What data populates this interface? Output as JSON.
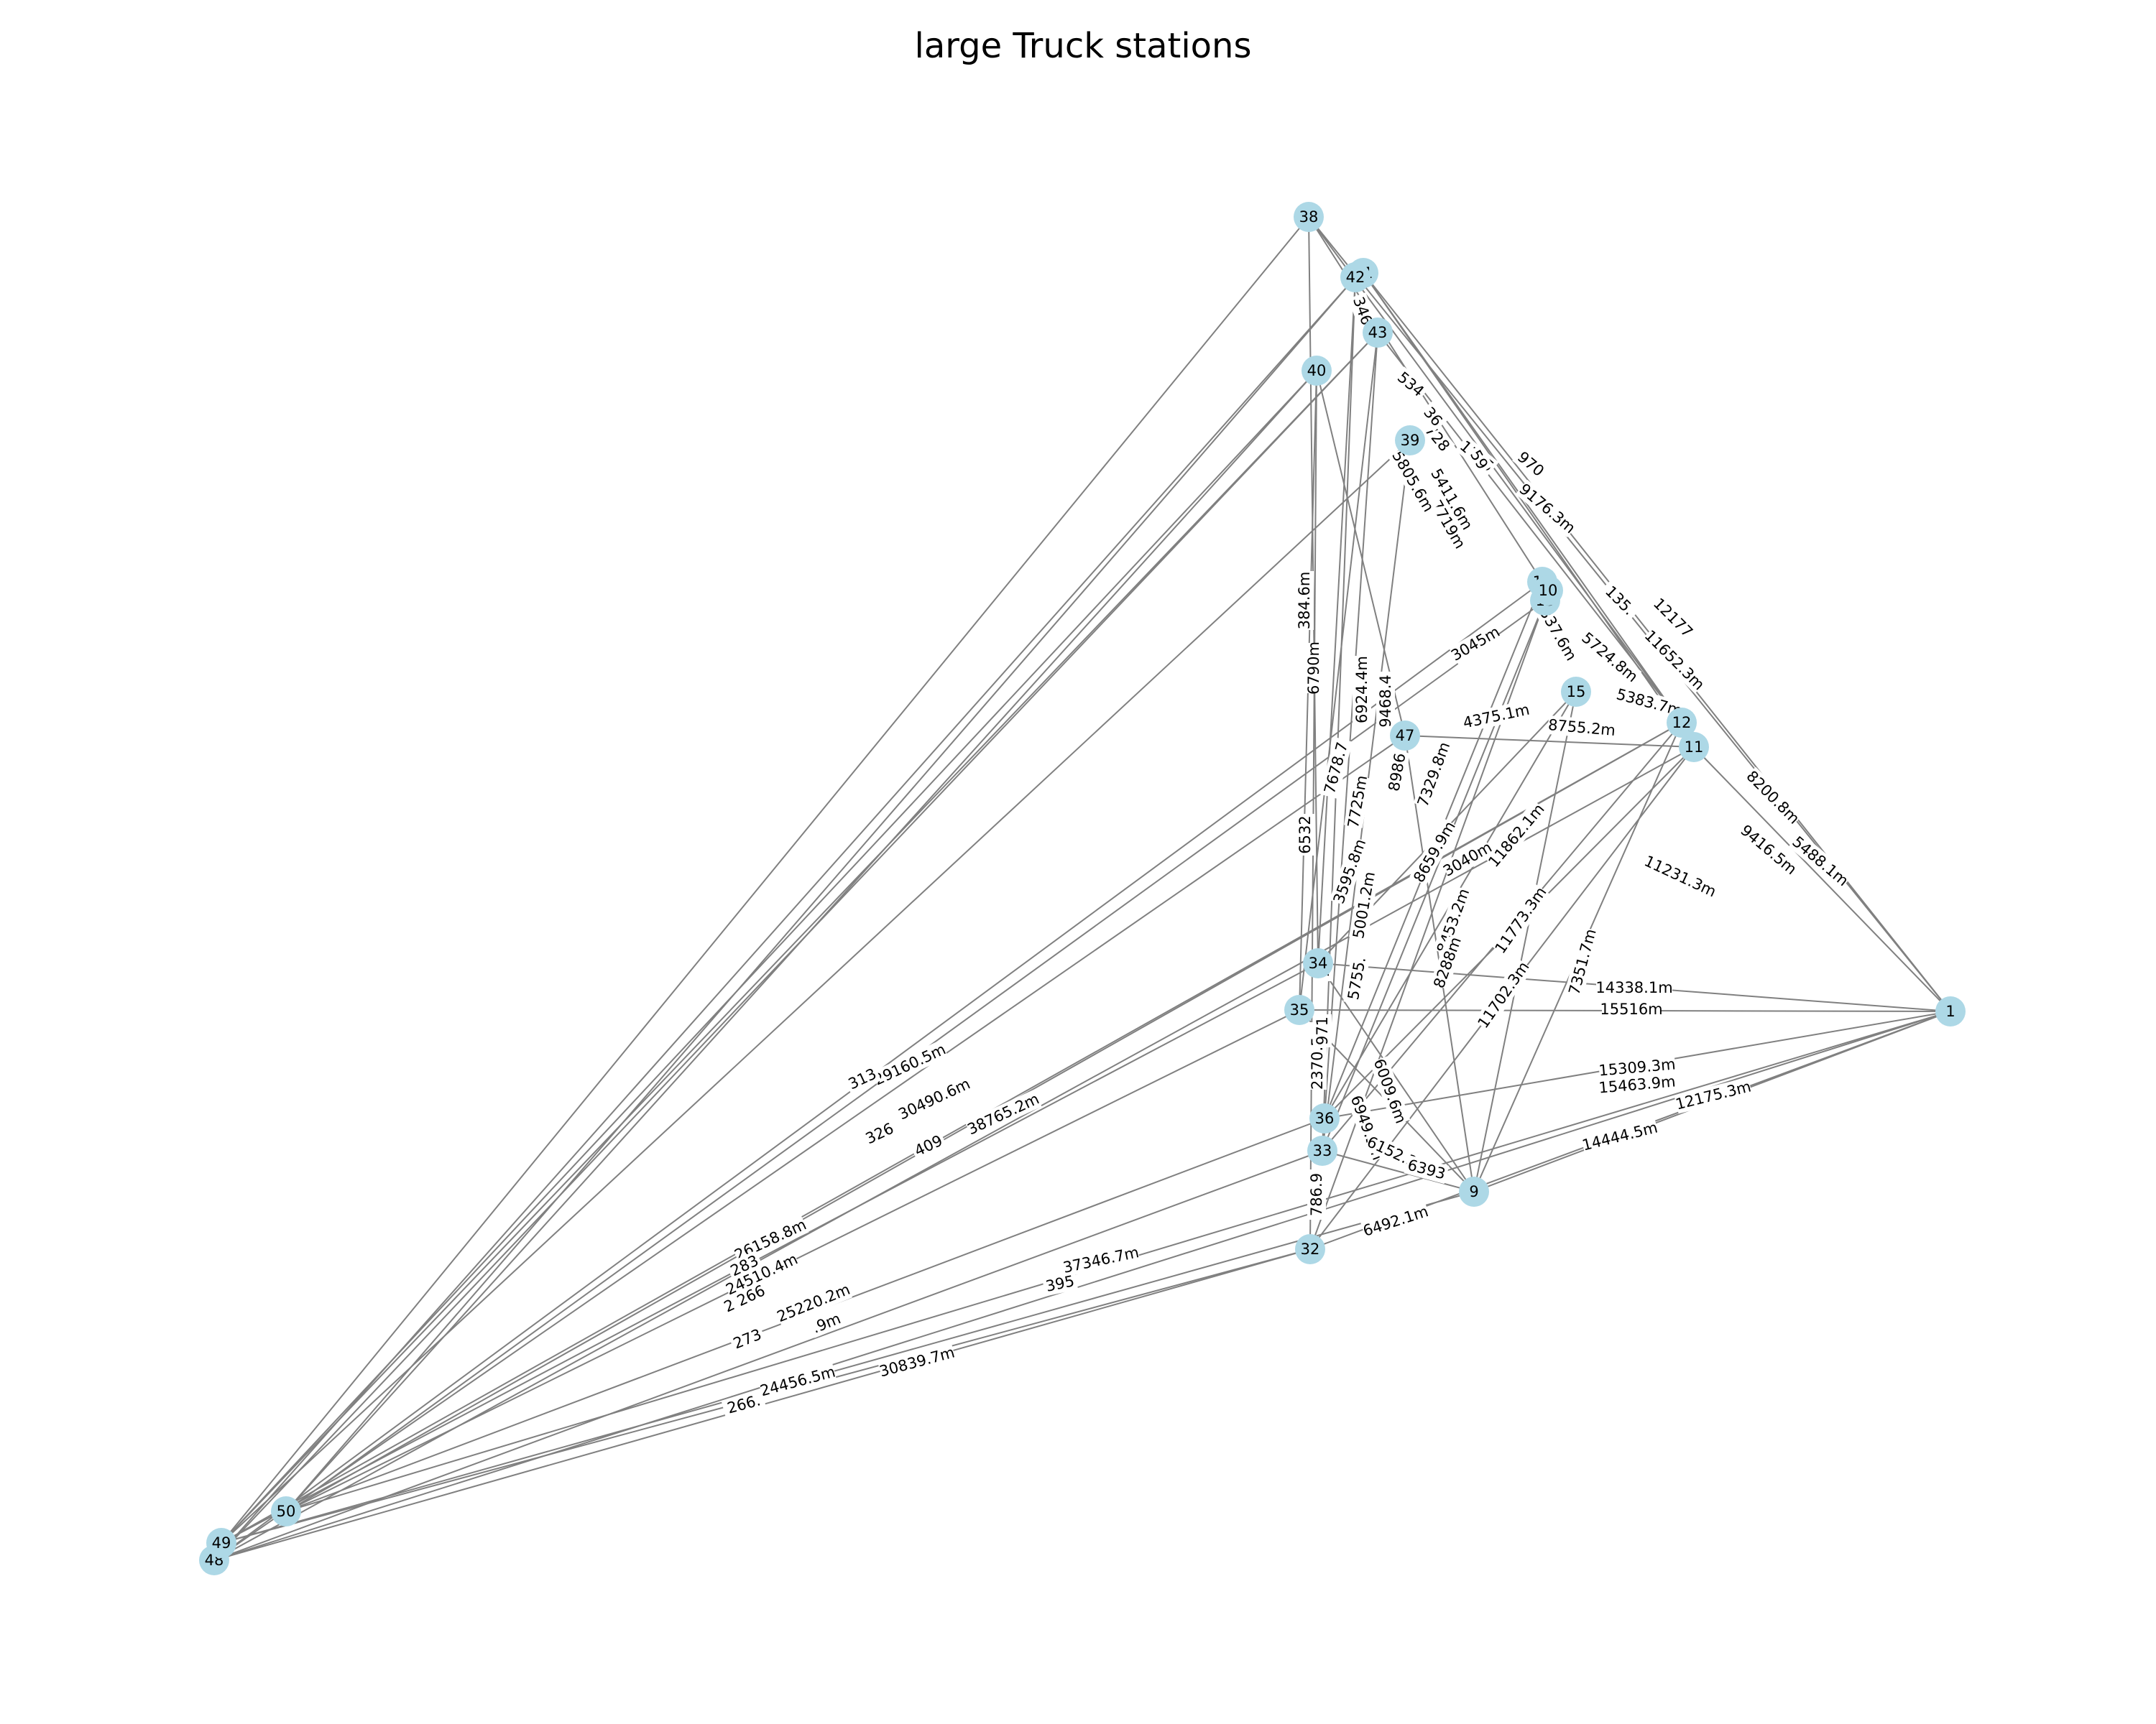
{
  "title": "large Truck stations",
  "colors": {
    "node_fill": "#add8e6",
    "edge": "#808080",
    "label_background": "#ffffff",
    "text": "#000000"
  },
  "nodes": [
    "1",
    "9",
    "11",
    "12",
    "13",
    "14",
    "15",
    "10",
    "32",
    "33",
    "34",
    "35",
    "36",
    "38",
    "39",
    "40",
    "41",
    "42",
    "43",
    "47",
    "48",
    "49",
    "50"
  ],
  "edges": [
    {
      "source": "38",
      "target": "1",
      "label": ""
    },
    {
      "source": "38",
      "target": "49",
      "label": ""
    },
    {
      "source": "38",
      "target": "12",
      "label": ""
    },
    {
      "source": "38",
      "target": "14",
      "label": ""
    },
    {
      "source": "38",
      "target": "34",
      "label": ""
    },
    {
      "source": "41",
      "target": "1",
      "label": ""
    },
    {
      "source": "41",
      "target": "12",
      "label": ""
    },
    {
      "source": "41",
      "target": "11",
      "label": ""
    },
    {
      "source": "42",
      "target": "50",
      "label": ""
    },
    {
      "source": "42",
      "target": "34",
      "label": ""
    },
    {
      "source": "43",
      "target": "48",
      "label": ""
    },
    {
      "source": "43",
      "target": "12",
      "label": ""
    },
    {
      "source": "40",
      "target": "49",
      "label": ""
    },
    {
      "source": "40",
      "target": "35",
      "label": ""
    },
    {
      "source": "40",
      "target": "47",
      "label": ""
    },
    {
      "source": "39",
      "target": "49",
      "label": ""
    },
    {
      "source": "39",
      "target": "33",
      "label": ""
    },
    {
      "source": "14",
      "target": "48",
      "label": ""
    },
    {
      "source": "13",
      "target": "50",
      "label": ""
    },
    {
      "source": "13",
      "target": "33",
      "label": ""
    },
    {
      "source": "12",
      "target": "49",
      "label": ""
    },
    {
      "source": "11",
      "target": "48",
      "label": ""
    },
    {
      "source": "11",
      "target": "32",
      "label": ""
    },
    {
      "source": "11",
      "target": "1",
      "label": ""
    },
    {
      "source": "15",
      "target": "36",
      "label": ""
    },
    {
      "source": "1",
      "target": "48",
      "label": ""
    },
    {
      "source": "1",
      "target": "50",
      "label": ""
    },
    {
      "source": "1",
      "target": "32",
      "label": ""
    },
    {
      "source": "1",
      "target": "34",
      "label": ""
    },
    {
      "source": "1",
      "target": "35",
      "label": ""
    },
    {
      "source": "1",
      "target": "36",
      "label": ""
    },
    {
      "source": "1",
      "target": "9",
      "label": ""
    },
    {
      "source": "9",
      "target": "49",
      "label": ""
    },
    {
      "source": "9",
      "target": "33",
      "label": ""
    },
    {
      "source": "9",
      "target": "35",
      "label": ""
    },
    {
      "source": "9",
      "target": "34",
      "label": ""
    },
    {
      "source": "9",
      "target": "47",
      "label": ""
    },
    {
      "source": "9",
      "target": "15",
      "label": ""
    },
    {
      "source": "9",
      "target": "12",
      "label": ""
    },
    {
      "source": "32",
      "target": "48",
      "label": ""
    },
    {
      "source": "32",
      "target": "49",
      "label": ""
    },
    {
      "source": "32",
      "target": "40",
      "label": ""
    },
    {
      "source": "32",
      "target": "13",
      "label": ""
    },
    {
      "source": "33",
      "target": "48",
      "label": ""
    },
    {
      "source": "33",
      "target": "42",
      "label": ""
    },
    {
      "source": "33",
      "target": "12",
      "label": ""
    },
    {
      "source": "34",
      "target": "49",
      "label": ""
    },
    {
      "source": "34",
      "target": "15",
      "label": ""
    },
    {
      "source": "35",
      "target": "50",
      "label": ""
    },
    {
      "source": "35",
      "target": "43",
      "label": ""
    },
    {
      "source": "36",
      "target": "50",
      "label": ""
    },
    {
      "source": "36",
      "target": "43",
      "label": ""
    },
    {
      "source": "36",
      "target": "11",
      "label": ""
    },
    {
      "source": "36",
      "target": "14",
      "label": ""
    },
    {
      "source": "47",
      "target": "48",
      "label": ""
    },
    {
      "source": "47",
      "target": "11",
      "label": ""
    },
    {
      "source": "50",
      "target": "12",
      "label": ""
    },
    {
      "source": "50",
      "target": "40",
      "label": ""
    },
    {
      "source": "49",
      "target": "43",
      "label": ""
    },
    {
      "source": "48",
      "target": "42",
      "label": ""
    }
  ],
  "edge_labels": [
    {
      "text": "29160.5m"
    },
    {
      "text": "313"
    },
    {
      "text": "30490.6m"
    },
    {
      "text": "326"
    },
    {
      "text": "38765.2m"
    },
    {
      "text": "409"
    },
    {
      "text": "26158.8m"
    },
    {
      "text": "283"
    },
    {
      "text": "24510.4m"
    },
    {
      "text": "2 266"
    },
    {
      "text": "25220.2m"
    },
    {
      "text": "273"
    },
    {
      "text": ".9m"
    },
    {
      "text": "24456.5m"
    },
    {
      "text": "266."
    },
    {
      "text": "30839.7m"
    },
    {
      "text": "37346.7m"
    },
    {
      "text": "395"
    },
    {
      "text": "6492.1m"
    },
    {
      "text": "14444.5m"
    },
    {
      "text": "12175.3m"
    },
    {
      "text": "15309.3m"
    },
    {
      "text": "15463.9m"
    },
    {
      "text": "15516m"
    },
    {
      "text": "14338.1m"
    },
    {
      "text": "11231.3m"
    },
    {
      "text": "9416.5m"
    },
    {
      "text": "5488.1m"
    },
    {
      "text": "8200.8m"
    },
    {
      "text": "11652.3m"
    },
    {
      "text": "12177"
    },
    {
      "text": "135."
    },
    {
      "text": "5724.8m"
    },
    {
      "text": "5383.7m"
    },
    {
      "text": "8755.2m"
    },
    {
      "text": "4375.1m"
    },
    {
      "text": "3045m"
    },
    {
      "text": "337.6m"
    },
    {
      "text": "9176.3m"
    },
    {
      "text": "1105"
    },
    {
      "text": "970"
    },
    {
      "text": "5411.6m"
    },
    {
      "text": "7719m"
    },
    {
      "text": "5805.6m"
    },
    {
      "text": "534"
    },
    {
      "text": "728"
    },
    {
      "text": "59"
    },
    {
      "text": "36"
    },
    {
      "text": "346"
    },
    {
      "text": "384.6m"
    },
    {
      "text": "6790m"
    },
    {
      "text": "6924.4m"
    },
    {
      "text": "7678.7"
    },
    {
      "text": "7725m"
    },
    {
      "text": "8986"
    },
    {
      "text": "9468.4"
    },
    {
      "text": "7329.8m"
    },
    {
      "text": "3595.8m"
    },
    {
      "text": "8659.9m"
    },
    {
      "text": "11862.1m"
    },
    {
      "text": "8453.2m"
    },
    {
      "text": "8288m"
    },
    {
      "text": "11773.3m"
    },
    {
      "text": "11702.3m"
    },
    {
      "text": "7351.7m"
    },
    {
      "text": "5001.2m"
    },
    {
      "text": "5755."
    },
    {
      "text": "6009.6m"
    },
    {
      "text": "6949.5m"
    },
    {
      "text": "6152.3m"
    },
    {
      "text": "2370.5m"
    },
    {
      "text": "786.9"
    },
    {
      "text": "6532"
    },
    {
      "text": "78"
    },
    {
      "text": "971"
    },
    {
      "text": "3040m"
    },
    {
      "text": "6393"
    }
  ]
}
